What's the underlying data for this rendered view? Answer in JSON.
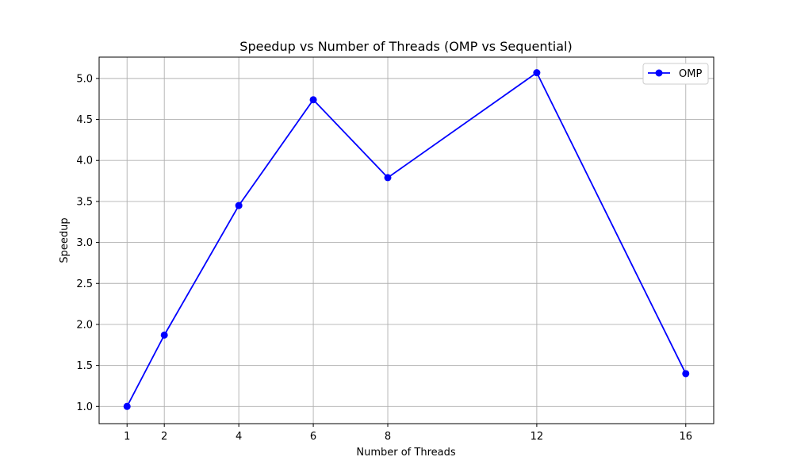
{
  "chart_data": {
    "type": "line",
    "title": "Speedup vs Number of Threads (OMP vs Sequential)",
    "xlabel": "Number of Threads",
    "ylabel": "Speedup",
    "xlim": [
      0.25,
      16.75
    ],
    "ylim": [
      0.79,
      5.26
    ],
    "xticks": [
      1,
      2,
      4,
      6,
      8,
      12,
      16
    ],
    "yticks": [
      1.0,
      1.5,
      2.0,
      2.5,
      3.0,
      3.5,
      4.0,
      4.5,
      5.0
    ],
    "ytick_labels": [
      "1.0",
      "1.5",
      "2.0",
      "2.5",
      "3.0",
      "3.5",
      "4.0",
      "4.5",
      "5.0"
    ],
    "grid": true,
    "legend_position": "top-right",
    "series": [
      {
        "name": "OMP",
        "color": "#0000ff",
        "marker": "circle",
        "x": [
          1,
          2,
          4,
          6,
          8,
          12,
          16
        ],
        "y": [
          1.0,
          1.87,
          3.45,
          4.74,
          3.79,
          5.07,
          1.4
        ]
      }
    ]
  }
}
